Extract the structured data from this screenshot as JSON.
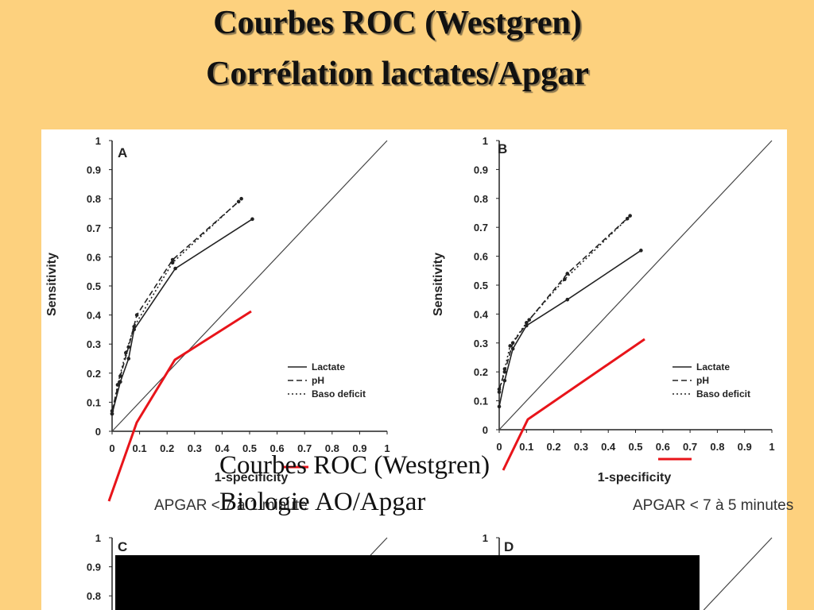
{
  "slide": {
    "title_line1": "Courbes ROC (Westgren)",
    "title_line2": "Corrélation lactates/Apgar",
    "overlay_line1": "Courbes ROC (Westgren)",
    "overlay_line2": "Biologie AO/Apgar",
    "background": "#fdd17e",
    "accent_red": "#e8141a"
  },
  "chart_data": [
    {
      "type": "line",
      "panel_label": "A",
      "xlabel": "1-specificity",
      "ylabel": "Sensitivity",
      "caption": "APGAR < 7 à 1 minute",
      "xlim": [
        0,
        1
      ],
      "ylim": [
        0,
        1
      ],
      "xticks": [
        "0",
        "0.1",
        "0.2",
        "0.3",
        "0.4",
        "0.5",
        "0.6",
        "0.7",
        "0.8",
        "0.9",
        "1"
      ],
      "yticks": [
        "0",
        "0.1",
        "0.2",
        "0.3",
        "0.4",
        "0.5",
        "0.6",
        "0.7",
        "0.8",
        "0.9",
        "1"
      ],
      "legend": [
        "Lactate",
        "pH",
        "Baso deficit"
      ],
      "legend_position": "lower-right",
      "series": [
        {
          "name": "Lactate",
          "style": "solid",
          "x": [
            0,
            0.03,
            0.06,
            0.08,
            0.23,
            0.51
          ],
          "y": [
            0.06,
            0.17,
            0.25,
            0.35,
            0.56,
            0.73
          ]
        },
        {
          "name": "pH",
          "style": "dashed",
          "x": [
            0,
            0.03,
            0.06,
            0.09,
            0.22,
            0.46
          ],
          "y": [
            0.07,
            0.19,
            0.29,
            0.4,
            0.59,
            0.79
          ]
        },
        {
          "name": "Baso deficit",
          "style": "dotted",
          "x": [
            0,
            0.02,
            0.05,
            0.08,
            0.22,
            0.47
          ],
          "y": [
            0.06,
            0.16,
            0.27,
            0.36,
            0.58,
            0.8
          ]
        }
      ],
      "reference_line": {
        "x": [
          0,
          1
        ],
        "y": [
          0,
          1
        ]
      }
    },
    {
      "type": "line",
      "panel_label": "B",
      "xlabel": "1-specificity",
      "ylabel": "Sensitivity",
      "caption": "APGAR < 7 à 5 minutes",
      "xlim": [
        0,
        1
      ],
      "ylim": [
        0,
        1
      ],
      "xticks": [
        "0",
        "0.1",
        "0.2",
        "0.3",
        "0.4",
        "0.5",
        "0.6",
        "0.7",
        "0.8",
        "0.9",
        "1"
      ],
      "yticks": [
        "0",
        "0.1",
        "0.2",
        "0.3",
        "0.4",
        "0.5",
        "0.6",
        "0.7",
        "0.8",
        "0.9",
        "1"
      ],
      "legend": [
        "Lactate",
        "pH",
        "Baso deficit"
      ],
      "legend_position": "lower-right",
      "series": [
        {
          "name": "Lactate",
          "style": "solid",
          "x": [
            0,
            0.02,
            0.05,
            0.1,
            0.25,
            0.52
          ],
          "y": [
            0.08,
            0.17,
            0.28,
            0.36,
            0.45,
            0.62
          ]
        },
        {
          "name": "pH",
          "style": "dashed",
          "x": [
            0,
            0.02,
            0.05,
            0.11,
            0.25,
            0.48
          ],
          "y": [
            0.14,
            0.2,
            0.3,
            0.38,
            0.54,
            0.74
          ]
        },
        {
          "name": "Baso deficit",
          "style": "dotted",
          "x": [
            0,
            0.02,
            0.04,
            0.1,
            0.24,
            0.47
          ],
          "y": [
            0.13,
            0.21,
            0.29,
            0.37,
            0.52,
            0.73
          ]
        }
      ],
      "reference_line": {
        "x": [
          0,
          1
        ],
        "y": [
          0,
          1
        ]
      }
    },
    {
      "type": "line",
      "panel_label": "C",
      "xlim": [
        0,
        1
      ],
      "ylim": [
        0,
        1
      ],
      "yticks": [
        "1",
        "0.9",
        "0.8"
      ],
      "series": [],
      "reference_line": {
        "x": [
          0,
          1
        ],
        "y": [
          0,
          1
        ]
      }
    },
    {
      "type": "line",
      "panel_label": "D",
      "xlim": [
        0,
        1
      ],
      "ylim": [
        0,
        1
      ],
      "yticks": [
        "1"
      ],
      "series": [],
      "reference_line": {
        "x": [
          0,
          1
        ],
        "y": [
          0,
          1
        ]
      }
    }
  ]
}
